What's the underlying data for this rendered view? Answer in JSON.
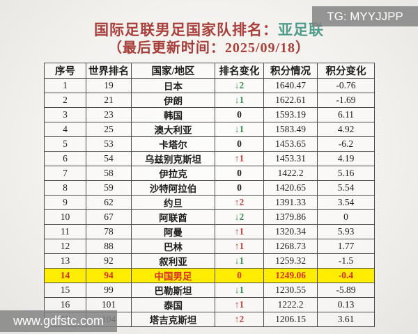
{
  "watermarks": {
    "top": "TG: MYYJJPP",
    "bottom": "www.gdfstc.com"
  },
  "title": {
    "main": "国际足联男足国家队排名：",
    "confederation": "亚足联",
    "subtitle": "（最后更新时间：2025/09/18）"
  },
  "table": {
    "columns": [
      "序号",
      "世界排名",
      "国家/地区",
      "排名变化",
      "积分情况",
      "积分变化"
    ],
    "rows": [
      {
        "no": "1",
        "world_rank": "19",
        "team": "日本",
        "change_dir": "down",
        "change_val": "2",
        "points": "1640.47",
        "points_change": "-0.76",
        "highlight": false
      },
      {
        "no": "2",
        "world_rank": "21",
        "team": "伊朗",
        "change_dir": "down",
        "change_val": "1",
        "points": "1622.61",
        "points_change": "-1.69",
        "highlight": false
      },
      {
        "no": "3",
        "world_rank": "23",
        "team": "韩国",
        "change_dir": "none",
        "change_val": "0",
        "points": "1593.19",
        "points_change": "6.11",
        "highlight": false
      },
      {
        "no": "4",
        "world_rank": "25",
        "team": "澳大利亚",
        "change_dir": "down",
        "change_val": "1",
        "points": "1583.49",
        "points_change": "4.92",
        "highlight": false
      },
      {
        "no": "5",
        "world_rank": "53",
        "team": "卡塔尔",
        "change_dir": "none",
        "change_val": "0",
        "points": "1453.65",
        "points_change": "-6.2",
        "highlight": false
      },
      {
        "no": "6",
        "world_rank": "54",
        "team": "乌兹别克斯坦",
        "change_dir": "up",
        "change_val": "1",
        "points": "1453.31",
        "points_change": "4.19",
        "highlight": false
      },
      {
        "no": "7",
        "world_rank": "58",
        "team": "伊拉克",
        "change_dir": "none",
        "change_val": "0",
        "points": "1422.2",
        "points_change": "5.16",
        "highlight": false
      },
      {
        "no": "8",
        "world_rank": "59",
        "team": "沙特阿拉伯",
        "change_dir": "none",
        "change_val": "0",
        "points": "1420.65",
        "points_change": "5.54",
        "highlight": false
      },
      {
        "no": "9",
        "world_rank": "62",
        "team": "约旦",
        "change_dir": "up",
        "change_val": "2",
        "points": "1391.33",
        "points_change": "3.54",
        "highlight": false
      },
      {
        "no": "10",
        "world_rank": "67",
        "team": "阿联酋",
        "change_dir": "down",
        "change_val": "2",
        "points": "1379.86",
        "points_change": "0",
        "highlight": false
      },
      {
        "no": "11",
        "world_rank": "78",
        "team": "阿曼",
        "change_dir": "up",
        "change_val": "1",
        "points": "1320.34",
        "points_change": "5.93",
        "highlight": false
      },
      {
        "no": "12",
        "world_rank": "88",
        "team": "巴林",
        "change_dir": "up",
        "change_val": "1",
        "points": "1268.73",
        "points_change": "1.77",
        "highlight": false
      },
      {
        "no": "13",
        "world_rank": "92",
        "team": "叙利亚",
        "change_dir": "down",
        "change_val": "1",
        "points": "1259.32",
        "points_change": "-1.5",
        "highlight": false
      },
      {
        "no": "14",
        "world_rank": "94",
        "team": "中国男足",
        "change_dir": "none",
        "change_val": "0",
        "points": "1249.06",
        "points_change": "-0.4",
        "highlight": true
      },
      {
        "no": "15",
        "world_rank": "99",
        "team": "巴勒斯坦",
        "change_dir": "down",
        "change_val": "1",
        "points": "1230.55",
        "points_change": "-5.89",
        "highlight": false
      },
      {
        "no": "16",
        "world_rank": "101",
        "team": "泰国",
        "change_dir": "up",
        "change_val": "1",
        "points": "1222.2",
        "points_change": "0.13",
        "highlight": false
      },
      {
        "no": "17",
        "world_rank": "104",
        "team": "塔吉克斯坦",
        "change_dir": "up",
        "change_val": "2",
        "points": "1206.15",
        "points_change": "3.61",
        "highlight": false
      }
    ]
  },
  "icons": {
    "up_arrow": "↑",
    "down_arrow": "↓"
  },
  "colors": {
    "title_red": "#a93f3b",
    "confed_green": "#4d9b8a",
    "arrow_up_red": "#c0453f",
    "arrow_down_green": "#3f8f4f",
    "highlight_bg": "#ffee00",
    "highlight_text": "#d93025",
    "watermark_text": "#ffffff"
  }
}
